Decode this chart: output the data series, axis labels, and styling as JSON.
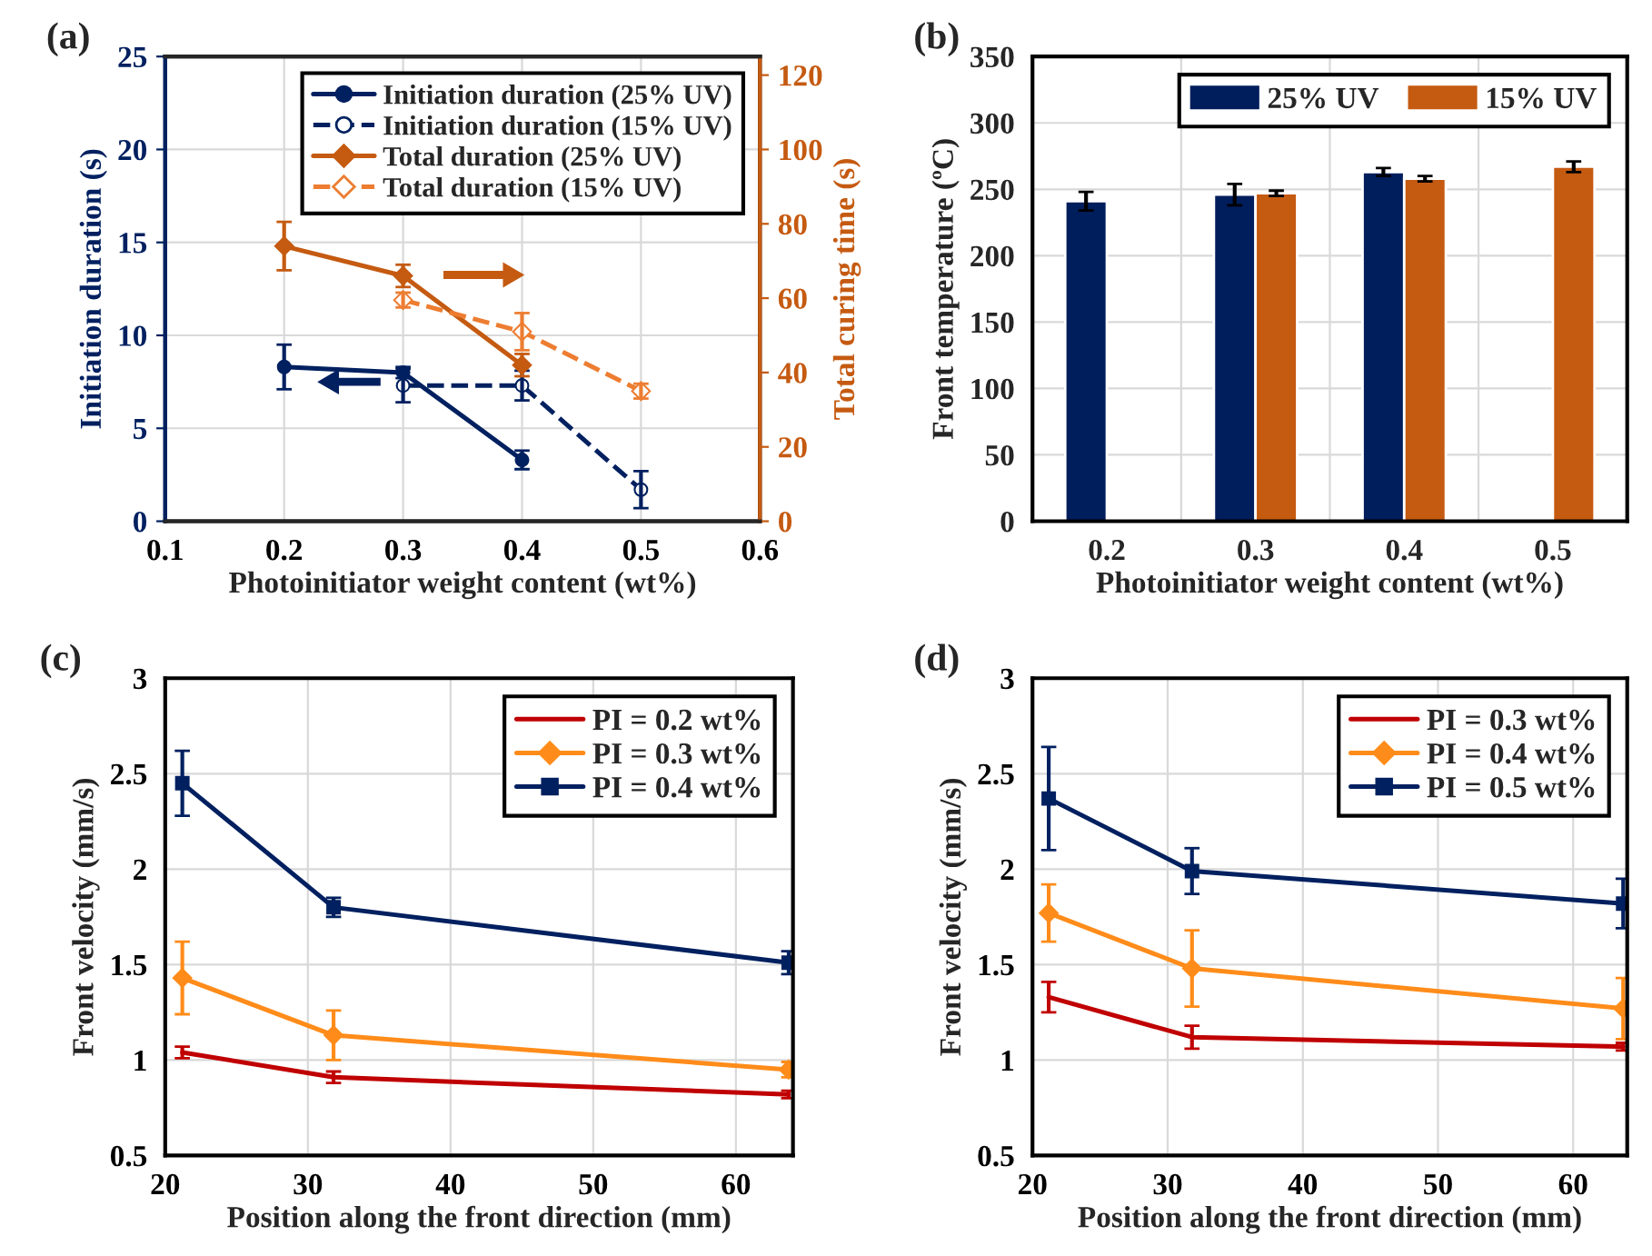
{
  "chart_data": [
    {
      "type": "line",
      "title": "(a)",
      "xlabel": "Photoinitiator weight content (wt%)",
      "ylabel": "Initiation duration (s)",
      "y2label": "Total curing time (s)",
      "xlim": [
        0.1,
        0.6
      ],
      "xticks": [
        0.1,
        0.2,
        0.3,
        0.4,
        0.5,
        0.6
      ],
      "ylim": [
        0,
        25
      ],
      "yticks": [
        0,
        5,
        10,
        15,
        20,
        25
      ],
      "y2lim": [
        0,
        125
      ],
      "y2ticks": [
        0,
        20,
        40,
        60,
        80,
        100,
        120
      ],
      "grid": true,
      "legend": "top right",
      "series": [
        {
          "name": "Initiation duration (25% UV)",
          "color": "#002060",
          "x": [
            0.2,
            0.3,
            0.4
          ],
          "values": [
            8.3,
            8.0,
            3.3
          ],
          "errors": [
            1.2,
            0.3,
            0.5
          ],
          "marker": "circle",
          "line_style": "solid"
        },
        {
          "name": "Initiation duration (15% UV)",
          "color": "#002060",
          "x": [
            0.3,
            0.4,
            0.5
          ],
          "values": [
            7.3,
            7.3,
            1.7
          ],
          "errors": [
            0.9,
            0.8,
            1.0
          ],
          "marker": "circle",
          "line_style": "dashed"
        },
        {
          "name": "Total duration (25% UV)",
          "color": "#c55a11",
          "axis": "y2",
          "x": [
            0.2,
            0.3,
            0.4
          ],
          "values": [
            74,
            66,
            42
          ],
          "errors": [
            6.5,
            3,
            3
          ],
          "marker": "diamond",
          "line_style": "solid"
        },
        {
          "name": "Total duration (15% UV)",
          "color": "#ed7d31",
          "axis": "y2",
          "x": [
            0.3,
            0.4,
            0.5
          ],
          "values": [
            59.5,
            51,
            35
          ],
          "errors": [
            2,
            5,
            2
          ],
          "marker": "diamond",
          "line_style": "dashed"
        }
      ]
    },
    {
      "type": "bar",
      "title": "(b)",
      "xlabel": "Photoinitiator weight content (wt%)",
      "ylabel": "Front temperature (ºC)",
      "categories": [
        "0.2",
        "0.3",
        "0.4",
        "0.5"
      ],
      "ylim": [
        0,
        350
      ],
      "yticks": [
        0,
        50,
        100,
        150,
        200,
        250,
        300,
        350
      ],
      "grid": true,
      "legend": "top right",
      "series": [
        {
          "name": "25% UV",
          "color": "#001d5c",
          "values": [
            241,
            246,
            263,
            null
          ],
          "errors": [
            7,
            8,
            3,
            null
          ]
        },
        {
          "name": "15% UV",
          "color": "#c55a11",
          "values": [
            null,
            247,
            258,
            267
          ],
          "errors": [
            null,
            2,
            2,
            4
          ]
        }
      ]
    },
    {
      "type": "line",
      "title": "(c)",
      "xlabel": "Position along the front direction (mm)",
      "ylabel": "Front velocity (mm/s)",
      "xlim": [
        20,
        64
      ],
      "xticks": [
        20,
        30,
        40,
        50,
        60
      ],
      "ylim": [
        0.5,
        3
      ],
      "yticks": [
        0.5,
        1,
        1.5,
        2,
        2.5,
        3
      ],
      "grid": true,
      "legend": "top right",
      "series": [
        {
          "name": "PI = 0.2 wt%",
          "color": "#c00000",
          "x": [
            21.2,
            31.8,
            63.7
          ],
          "values": [
            1.04,
            0.91,
            0.82
          ],
          "errors": [
            0.03,
            0.03,
            0.02
          ],
          "marker": "none",
          "line_style": "solid"
        },
        {
          "name": "PI = 0.3 wt%",
          "color": "#ff8c1a",
          "x": [
            21.2,
            31.8,
            63.7
          ],
          "values": [
            1.43,
            1.13,
            0.95
          ],
          "errors": [
            0.19,
            0.13,
            0.04
          ],
          "marker": "diamond",
          "line_style": "solid"
        },
        {
          "name": "PI = 0.4 wt%",
          "color": "#002060",
          "x": [
            21.2,
            31.8,
            63.7
          ],
          "values": [
            2.45,
            1.8,
            1.51
          ],
          "errors": [
            0.17,
            0.05,
            0.06
          ],
          "marker": "square",
          "line_style": "solid"
        }
      ]
    },
    {
      "type": "line",
      "title": "(d)",
      "xlabel": "Position along the front direction (mm)",
      "ylabel": "Front velocity (mm/s)",
      "xlim": [
        20,
        64
      ],
      "xticks": [
        20,
        30,
        40,
        50,
        60
      ],
      "ylim": [
        0.5,
        3
      ],
      "yticks": [
        0.5,
        1,
        1.5,
        2,
        2.5,
        3
      ],
      "grid": true,
      "legend": "top right",
      "series": [
        {
          "name": "PI = 0.3 wt%",
          "color": "#c00000",
          "x": [
            21.2,
            31.8,
            63.7
          ],
          "values": [
            1.33,
            1.12,
            1.07
          ],
          "errors": [
            0.08,
            0.06,
            0.02
          ],
          "marker": "none",
          "line_style": "solid"
        },
        {
          "name": "PI = 0.4 wt%",
          "color": "#ff8c1a",
          "x": [
            21.2,
            31.8,
            63.7
          ],
          "values": [
            1.77,
            1.48,
            1.27
          ],
          "errors": [
            0.15,
            0.2,
            0.16
          ],
          "marker": "diamond",
          "line_style": "solid"
        },
        {
          "name": "PI = 0.5 wt%",
          "color": "#002060",
          "x": [
            21.2,
            31.8,
            63.7
          ],
          "values": [
            2.37,
            1.99,
            1.82
          ],
          "errors": [
            0.27,
            0.12,
            0.13
          ],
          "marker": "square",
          "line_style": "solid"
        }
      ]
    }
  ]
}
